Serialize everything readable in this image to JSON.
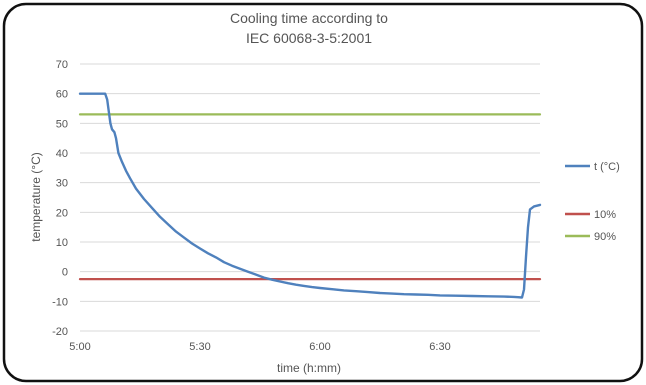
{
  "chart_data": {
    "type": "line",
    "title_lines": [
      "Cooling time  according to",
      "IEC 60068-3-5:2001"
    ],
    "xlabel": "time (h:mm)",
    "ylabel": "temperature (°C)",
    "x_unit": "minutes after 5:00",
    "xlim": [
      0,
      115
    ],
    "ylim": [
      -20,
      70
    ],
    "y_ticks": [
      -20,
      -10,
      0,
      10,
      20,
      30,
      40,
      50,
      60,
      70
    ],
    "x_ticks": [
      {
        "value": 0,
        "label": "5:00"
      },
      {
        "value": 30,
        "label": "5:30"
      },
      {
        "value": 60,
        "label": "6:00"
      },
      {
        "value": 90,
        "label": "6:30"
      }
    ],
    "grid": "horizontal",
    "legend_position": "right",
    "series": [
      {
        "name": "t (°C)",
        "color": "#4f81bd",
        "points": [
          [
            0,
            60
          ],
          [
            6.3,
            60
          ],
          [
            6.8,
            58
          ],
          [
            7.2,
            54
          ],
          [
            7.6,
            50
          ],
          [
            8,
            48
          ],
          [
            8.6,
            47
          ],
          [
            9,
            45
          ],
          [
            9.6,
            40
          ],
          [
            10.5,
            37
          ],
          [
            11.5,
            34
          ],
          [
            12.5,
            31.5
          ],
          [
            14,
            28
          ],
          [
            16,
            24.5
          ],
          [
            18,
            21.5
          ],
          [
            20,
            18.5
          ],
          [
            22,
            16
          ],
          [
            24,
            13.5
          ],
          [
            26,
            11.5
          ],
          [
            28,
            9.5
          ],
          [
            30,
            7.8
          ],
          [
            32,
            6.2
          ],
          [
            34,
            4.8
          ],
          [
            36,
            3.2
          ],
          [
            38,
            2
          ],
          [
            40,
            1
          ],
          [
            42,
            0
          ],
          [
            44,
            -1
          ],
          [
            46,
            -2
          ],
          [
            48,
            -2.7
          ],
          [
            50,
            -3.3
          ],
          [
            52,
            -3.9
          ],
          [
            54,
            -4.4
          ],
          [
            56,
            -4.8
          ],
          [
            58,
            -5.2
          ],
          [
            60,
            -5.5
          ],
          [
            63,
            -5.9
          ],
          [
            66,
            -6.3
          ],
          [
            69,
            -6.6
          ],
          [
            72,
            -6.9
          ],
          [
            75,
            -7.2
          ],
          [
            78,
            -7.4
          ],
          [
            81,
            -7.6
          ],
          [
            84,
            -7.7
          ],
          [
            87,
            -7.8
          ],
          [
            90,
            -8
          ],
          [
            94,
            -8.1
          ],
          [
            98,
            -8.2
          ],
          [
            102,
            -8.3
          ],
          [
            106,
            -8.4
          ],
          [
            108.5,
            -8.5
          ],
          [
            109.5,
            -8.6
          ],
          [
            110.5,
            -8.7
          ],
          [
            111,
            -6
          ],
          [
            111.5,
            5
          ],
          [
            112,
            15
          ],
          [
            112.5,
            21
          ],
          [
            113.5,
            22
          ],
          [
            115,
            22.5
          ]
        ]
      },
      {
        "name": "10%",
        "color": "#c0504d",
        "points": [
          [
            0,
            -2.5
          ],
          [
            115,
            -2.5
          ]
        ]
      },
      {
        "name": "90%",
        "color": "#9bbb59",
        "points": [
          [
            0,
            53
          ],
          [
            115,
            53
          ]
        ]
      }
    ]
  }
}
